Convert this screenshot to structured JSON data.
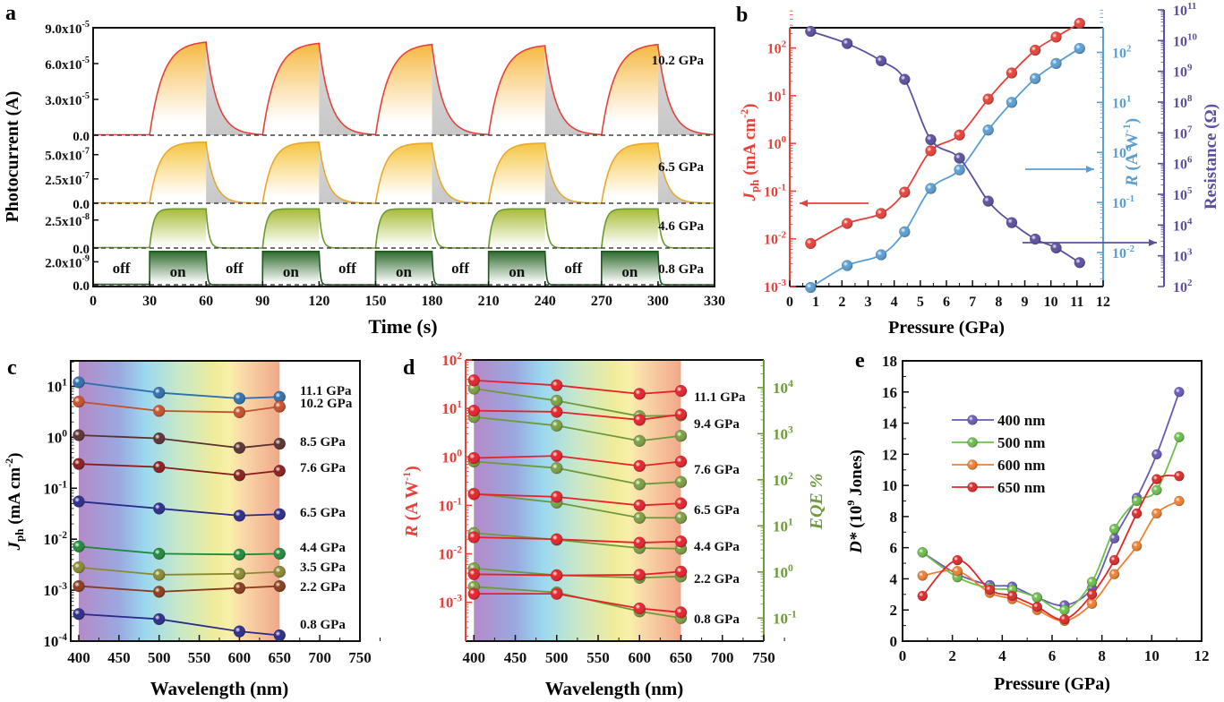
{
  "figure": {
    "panels": [
      "a",
      "b",
      "c",
      "d",
      "e"
    ]
  },
  "colors": {
    "red": "#e8413a",
    "blue": "#5a9fd4",
    "purple": "#5a4fa0",
    "green_axis": "#6e9a3a",
    "orange": "#f08030",
    "lightgreen": "#6cc04a"
  },
  "chart_data": [
    {
      "panel": "a",
      "type": "line",
      "title": "",
      "xlabel": "Time (s)",
      "ylabel": "Photocurrent (A)",
      "xlim": [
        0,
        330
      ],
      "xticks": [
        "0",
        "30",
        "60",
        "90",
        "120",
        "150",
        "180",
        "210",
        "240",
        "270",
        "300",
        "330"
      ],
      "on_off_labels": [
        "off",
        "on",
        "off",
        "on",
        "off",
        "on",
        "off",
        "on",
        "off",
        "on"
      ],
      "on_intervals": [
        [
          30,
          60
        ],
        [
          90,
          120
        ],
        [
          150,
          180
        ],
        [
          210,
          240
        ],
        [
          270,
          300
        ]
      ],
      "series": [
        {
          "name": "10.2 GPa",
          "ylim": [
            0,
            9e-05
          ],
          "yticks": [
            "0.0",
            "3.0x10-5",
            "6.0x10-5",
            "9.0x10-5"
          ],
          "ytick_values": [
            0,
            3e-05,
            6e-05,
            9e-05
          ],
          "on_peak": [
            7.9e-05,
            7.8e-05,
            7.7e-05,
            7.6e-05,
            7.7e-05
          ],
          "rise": "slow",
          "decay": "slow",
          "color": "#e8413a",
          "fill": "#f6b945"
        },
        {
          "name": "6.5 GPa",
          "ylim": [
            0,
            7e-07
          ],
          "yticks": [
            "0.0",
            "2.5x10-7",
            "5.0x10-7"
          ],
          "ytick_values": [
            0,
            2.5e-07,
            5e-07
          ],
          "on_peak": [
            6.3e-07,
            6.3e-07,
            6.2e-07,
            6.2e-07,
            6.2e-07
          ],
          "rise": "medium",
          "decay": "medium",
          "color": "#e8a830",
          "fill": "#f6c845"
        },
        {
          "name": "4.6 GPa",
          "ylim": [
            0,
            4e-08
          ],
          "yticks": [
            "0.0",
            "2.5x10-8"
          ],
          "ytick_values": [
            0,
            2.5e-08
          ],
          "on_peak": [
            3.5e-08,
            3.5e-08,
            3.5e-08,
            3.5e-08,
            3.5e-08
          ],
          "rise": "fast",
          "decay": "fast",
          "color": "#6a9a30",
          "fill": "#a8c040"
        },
        {
          "name": "0.8 GPa",
          "ylim": [
            0,
            3.2e-09
          ],
          "yticks": [
            "0.0",
            "2.0x10-9"
          ],
          "ytick_values": [
            0,
            2e-09
          ],
          "on_peak": [
            2.9e-09,
            2.9e-09,
            2.9e-09,
            2.9e-09,
            2.9e-09
          ],
          "rise": "step",
          "decay": "step",
          "color": "#1f5a20",
          "fill": "#2e7a30"
        }
      ]
    },
    {
      "panel": "b",
      "type": "line",
      "xlabel": "Pressure (GPa)",
      "xlim": [
        0,
        12
      ],
      "xticks": [
        "0",
        "1",
        "2",
        "3",
        "4",
        "5",
        "6",
        "7",
        "8",
        "9",
        "10",
        "11",
        "12"
      ],
      "axes": {
        "left": {
          "label_main": "J",
          "label_sub": "ph",
          "label_rest": " (mA cm",
          "label_sup": "-2",
          "label_end": ")",
          "scale": "log",
          "ylim_exp": [
            -3,
            2.8
          ],
          "ticks": [
            "10-3",
            "10-2",
            "10-1",
            "100",
            "101",
            "102"
          ],
          "color": "#e8413a"
        },
        "right1": {
          "label_main": "R",
          "label_rest": " (A W",
          "label_sup": "-1",
          "label_end": ")",
          "scale": "log",
          "ylim_exp": [
            -2.68,
            2.85
          ],
          "ticks": [
            "10-2",
            "10-1",
            "100",
            "101",
            "102"
          ],
          "color": "#5a9fd4"
        },
        "right2": {
          "label": "Resistance (Ω)",
          "scale": "log",
          "ylim_exp": [
            2,
            11
          ],
          "ticks": [
            "102",
            "103",
            "104",
            "105",
            "106",
            "107",
            "108",
            "109",
            "1010",
            "1011"
          ],
          "color": "#5a4fa0"
        }
      },
      "x": [
        0.8,
        2.2,
        3.5,
        4.4,
        5.4,
        6.5,
        7.6,
        8.5,
        9.4,
        10.2,
        11.1
      ],
      "series": [
        {
          "name": "Jph",
          "axis": "left",
          "color": "#e8413a",
          "values": [
            0.008,
            0.021,
            0.034,
            0.095,
            0.7,
            1.5,
            8.5,
            30,
            90,
            170,
            330
          ]
        },
        {
          "name": "R",
          "axis": "right1",
          "color": "#5a9fd4",
          "values": [
            0.002,
            0.0055,
            0.009,
            0.026,
            0.19,
            0.45,
            2.8,
            10,
            30,
            60,
            120
          ]
        },
        {
          "name": "Resistance",
          "axis": "right2",
          "color": "#5a4fa0",
          "values": [
            20000000000.0,
            8000000000.0,
            2200000000.0,
            550000000.0,
            6000000.0,
            1500000.0,
            60000.0,
            12000.0,
            3500.0,
            1800.0,
            600.0
          ]
        }
      ],
      "arrows": [
        {
          "target": "left",
          "color": "#e8413a"
        },
        {
          "target": "right1",
          "color": "#5a9fd4"
        },
        {
          "target": "right2",
          "color": "#5a4fa0"
        }
      ]
    },
    {
      "panel": "c",
      "type": "line",
      "xlabel": "Wavelength (nm)",
      "ylabel_main": "J",
      "ylabel_sub": "ph",
      "ylabel_rest": " (mA cm",
      "ylabel_sup": "-2",
      "ylabel_end": ")",
      "xlim": [
        390,
        750
      ],
      "xticks": [
        "400",
        "450",
        "500",
        "550",
        "600",
        "650",
        "700",
        "750"
      ],
      "yscale": "log",
      "ylim_exp": [
        -4,
        1.5
      ],
      "yticks": [
        "10-4",
        "10-3",
        "10-2",
        "10-1",
        "100",
        "101"
      ],
      "spectrum_band": [
        400,
        650
      ],
      "x": [
        400,
        500,
        600,
        650
      ],
      "series": [
        {
          "name": "11.1 GPa",
          "color": "#2f6fb0",
          "values": [
            12,
            7.5,
            5.8,
            6.2
          ]
        },
        {
          "name": "10.2 GPa",
          "color": "#c8502a",
          "values": [
            5.0,
            3.3,
            3.1,
            4.0
          ]
        },
        {
          "name": "8.5 GPa",
          "color": "#5a3030",
          "values": [
            1.1,
            0.95,
            0.62,
            0.75
          ]
        },
        {
          "name": "7.6 GPa",
          "color": "#8a1a1a",
          "values": [
            0.3,
            0.26,
            0.18,
            0.22
          ]
        },
        {
          "name": "6.5 GPa",
          "color": "#2a2a8a",
          "values": [
            0.055,
            0.04,
            0.029,
            0.031
          ]
        },
        {
          "name": "4.4 GPa",
          "color": "#1f8a3a",
          "values": [
            0.0072,
            0.0052,
            0.005,
            0.0052
          ]
        },
        {
          "name": "3.5 GPa",
          "color": "#8a8a30",
          "values": [
            0.0028,
            0.002,
            0.0021,
            0.0023
          ]
        },
        {
          "name": "2.2 GPa",
          "color": "#8a3a1a",
          "values": [
            0.0012,
            0.00093,
            0.0011,
            0.0012
          ]
        },
        {
          "name": "0.8 GPa",
          "color": "#2a2a8a",
          "values": [
            0.00034,
            0.00027,
            0.000155,
            0.00013
          ]
        }
      ]
    },
    {
      "panel": "d",
      "type": "line",
      "xlabel": "Wavelength (nm)",
      "ylabel_main": "R",
      "ylabel_rest": " (A W",
      "ylabel_sup": "-1",
      "ylabel_end": ")",
      "y2label": "EQE %",
      "xlim": [
        390,
        750
      ],
      "xticks": [
        "400",
        "450",
        "500",
        "550",
        "600",
        "650",
        "700",
        "750"
      ],
      "yscale": "log",
      "ylim_exp": [
        -3.8,
        2
      ],
      "yticks": [
        "10-3",
        "10-2",
        "10-1",
        "100",
        "101",
        "102"
      ],
      "y2lim_exp": [
        -1.5,
        4.6
      ],
      "y2ticks": [
        "10-1",
        "100",
        "101",
        "102",
        "103",
        "104"
      ],
      "spectrum_band": [
        400,
        650
      ],
      "x": [
        400,
        500,
        600,
        650
      ],
      "labels": [
        "11.1 GPa",
        "9.4 GPa",
        "7.6 GPa",
        "6.5 GPa",
        "4.4 GPa",
        "2.2 GPa",
        "0.8 GPa"
      ],
      "series_R": [
        {
          "name": "11.1 GPa",
          "values": [
            38,
            30,
            20,
            23
          ]
        },
        {
          "name": "9.4 GPa",
          "values": [
            9,
            8.5,
            5.8,
            7.5
          ]
        },
        {
          "name": "7.6 GPa",
          "values": [
            0.95,
            1.05,
            0.65,
            0.8
          ]
        },
        {
          "name": "6.5 GPa",
          "values": [
            0.17,
            0.15,
            0.1,
            0.11
          ]
        },
        {
          "name": "4.4 GPa",
          "values": [
            0.022,
            0.02,
            0.017,
            0.018
          ]
        },
        {
          "name": "2.2 GPa",
          "values": [
            0.0038,
            0.0036,
            0.0037,
            0.0043
          ]
        },
        {
          "name": "0.8 GPa",
          "values": [
            0.0015,
            0.0015,
            0.00075,
            0.00062
          ]
        }
      ],
      "series_EQE": [
        {
          "name": "11.1 GPa",
          "values": [
            9500,
            5200,
            2400,
            2500
          ]
        },
        {
          "name": "9.4 GPa",
          "values": [
            2300,
            1500,
            700,
            900
          ]
        },
        {
          "name": "7.6 GPa",
          "values": [
            250,
            180,
            80,
            90
          ]
        },
        {
          "name": "6.5 GPa",
          "values": [
            50,
            32,
            15,
            15
          ]
        },
        {
          "name": "4.4 GPa",
          "values": [
            7,
            5,
            3.3,
            3.2
          ]
        },
        {
          "name": "2.2 GPa",
          "values": [
            1.2,
            0.85,
            0.75,
            0.8
          ]
        },
        {
          "name": "0.8 GPa",
          "values": [
            0.48,
            0.36,
            0.14,
            0.1
          ]
        }
      ]
    },
    {
      "panel": "e",
      "type": "line",
      "xlabel": "Pressure (GPa)",
      "ylabel_main": "D*",
      "ylabel_rest": " (10",
      "ylabel_sup": "9",
      "ylabel_end": " Jones)",
      "xlim": [
        0,
        12
      ],
      "ylim": [
        0,
        18
      ],
      "xticks": [
        "0",
        "2",
        "4",
        "6",
        "8",
        "10",
        "12"
      ],
      "yticks": [
        "0",
        "2",
        "4",
        "6",
        "8",
        "10",
        "12",
        "14",
        "16",
        "18"
      ],
      "legend_position": "upper-left",
      "x": [
        0.8,
        2.2,
        3.5,
        4.4,
        5.4,
        6.5,
        7.6,
        8.5,
        9.4,
        10.2,
        11.1
      ],
      "series": [
        {
          "name": "400 nm",
          "color": "#6a5ab8",
          "values": [
            5.7,
            4.3,
            3.6,
            3.5,
            2.8,
            2.3,
            3.4,
            6.6,
            9.2,
            12.0,
            16.0
          ]
        },
        {
          "name": "500 nm",
          "color": "#6cc04a",
          "values": [
            5.7,
            4.1,
            3.4,
            3.3,
            2.8,
            2.0,
            3.8,
            7.2,
            9.0,
            9.7,
            13.1
          ]
        },
        {
          "name": "600 nm",
          "color": "#f08030",
          "values": [
            4.2,
            4.5,
            3.1,
            2.7,
            2.0,
            1.3,
            2.4,
            4.3,
            6.1,
            8.2,
            9.0
          ]
        },
        {
          "name": "650 nm",
          "color": "#e02828",
          "values": [
            2.9,
            5.2,
            3.3,
            2.9,
            2.2,
            1.4,
            3.0,
            5.2,
            8.2,
            10.4,
            10.6
          ]
        }
      ]
    }
  ]
}
